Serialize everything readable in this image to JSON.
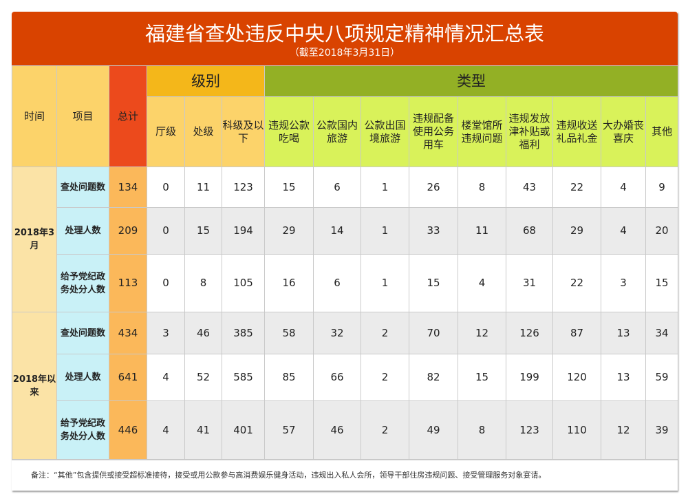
{
  "title": "福建省查处违反中央八项规定精神情况汇总表",
  "subtitle": "（截至2018年3月31日）",
  "headers": {
    "time": "时间",
    "item": "项目",
    "total": "总计",
    "level": "级别",
    "type": "类型",
    "levels": [
      "厅级",
      "处级",
      "科级及以下"
    ],
    "types": [
      "违规公款吃喝",
      "公款国内旅游",
      "公款出国境旅游",
      "违规配备使用公务用车",
      "楼堂馆所违规问题",
      "违规发放津补贴或福利",
      "违规收送礼品礼金",
      "大办婚丧喜庆",
      "其他"
    ]
  },
  "groups": [
    {
      "time": "2018年3月",
      "rows": [
        {
          "item": "查处问题数",
          "total": "134",
          "values": [
            "0",
            "11",
            "123",
            "15",
            "6",
            "1",
            "26",
            "8",
            "43",
            "22",
            "4",
            "9"
          ]
        },
        {
          "item": "处理人数",
          "total": "209",
          "values": [
            "0",
            "15",
            "194",
            "29",
            "14",
            "1",
            "33",
            "11",
            "68",
            "29",
            "4",
            "20"
          ]
        },
        {
          "item": "给予党纪政务处分人数",
          "total": "113",
          "values": [
            "0",
            "8",
            "105",
            "16",
            "6",
            "1",
            "15",
            "4",
            "31",
            "22",
            "3",
            "15"
          ]
        }
      ]
    },
    {
      "time": "2018年以来",
      "rows": [
        {
          "item": "查处问题数",
          "total": "434",
          "values": [
            "3",
            "46",
            "385",
            "58",
            "32",
            "2",
            "70",
            "12",
            "126",
            "87",
            "13",
            "34"
          ]
        },
        {
          "item": "处理人数",
          "total": "641",
          "values": [
            "4",
            "52",
            "585",
            "85",
            "66",
            "2",
            "82",
            "15",
            "199",
            "120",
            "13",
            "59"
          ]
        },
        {
          "item": "给予党纪政务处分人数",
          "total": "446",
          "values": [
            "4",
            "41",
            "401",
            "57",
            "46",
            "2",
            "49",
            "8",
            "123",
            "110",
            "12",
            "39"
          ]
        }
      ]
    }
  ],
  "note": "备注：“其他”包含提供或接受超标准接待，接受或用公款参与高消费娱乐健身活动，违规出入私人会所，领导干部住房违规问题、接受管理服务对象宴请。",
  "colors": {
    "title_bg": "#d94300",
    "total_header": "#ec4a1c",
    "level_header": "#f4b71a",
    "type_header": "#93b025",
    "type_subheader": "#d9f25a",
    "item_cell": "#c9f1f7",
    "time_cell": "#fbe3a6",
    "total_cell": "#fbb85a"
  }
}
